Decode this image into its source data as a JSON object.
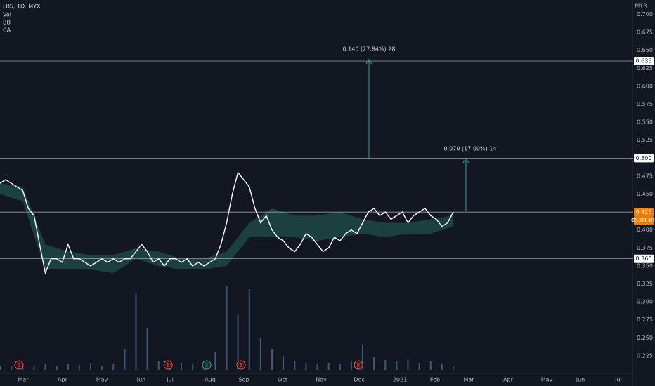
{
  "header": {
    "symbol": "LBS, 1D, MYX",
    "indicators": [
      "Vol",
      "BB",
      "CA"
    ]
  },
  "chart_data": {
    "type": "line",
    "currency": "MYR",
    "months": [
      "Mar",
      "Apr",
      "May",
      "Jun",
      "Jul",
      "Aug",
      "Sep",
      "Oct",
      "Nov",
      "Dec",
      "2021",
      "Feb",
      "Mar",
      "Apr",
      "May",
      "Jun",
      "Jul"
    ],
    "ylim": [
      0.2025,
      0.72
    ],
    "yticks": [
      {
        "value": 0.7,
        "label": "0.700"
      },
      {
        "value": 0.675,
        "label": "0.675"
      },
      {
        "value": 0.65,
        "label": "0.650"
      },
      {
        "value": 0.625,
        "label": "0.625"
      },
      {
        "value": 0.6,
        "label": "0.600"
      },
      {
        "value": 0.575,
        "label": "0.575"
      },
      {
        "value": 0.55,
        "label": "0.550"
      },
      {
        "value": 0.525,
        "label": "0.525"
      },
      {
        "value": 0.475,
        "label": "0.475"
      },
      {
        "value": 0.45,
        "label": "0.450"
      },
      {
        "value": 0.4,
        "label": "0.400"
      },
      {
        "value": 0.375,
        "label": "0.375"
      },
      {
        "value": 0.35,
        "label": "0.350"
      },
      {
        "value": 0.325,
        "label": "0.325"
      },
      {
        "value": 0.3,
        "label": "0.300"
      },
      {
        "value": 0.275,
        "label": "0.275"
      },
      {
        "value": 0.25,
        "label": "0.250"
      },
      {
        "value": 0.225,
        "label": "0.225"
      }
    ],
    "series": [
      {
        "color": "#ffffff",
        "values": [
          0.465,
          0.47,
          0.465,
          0.46,
          0.455,
          0.43,
          0.42,
          0.38,
          0.34,
          0.36,
          0.36,
          0.355,
          0.38,
          0.36,
          0.36,
          0.355,
          0.35,
          0.355,
          0.36,
          0.355,
          0.36,
          0.355,
          0.36,
          0.36,
          0.37,
          0.38,
          0.37,
          0.355,
          0.36,
          0.35,
          0.36,
          0.36,
          0.355,
          0.36,
          0.35,
          0.355,
          0.35,
          0.355,
          0.36,
          0.38,
          0.41,
          0.45,
          0.48,
          0.47,
          0.46,
          0.43,
          0.41,
          0.42,
          0.4,
          0.39,
          0.385,
          0.375,
          0.37,
          0.38,
          0.395,
          0.39,
          0.38,
          0.37,
          0.375,
          0.39,
          0.385,
          0.395,
          0.4,
          0.395,
          0.41,
          0.425,
          0.43,
          0.42,
          0.425,
          0.415,
          0.42,
          0.425,
          0.41,
          0.42,
          0.425,
          0.43,
          0.42,
          0.415,
          0.405,
          0.41,
          0.425
        ]
      }
    ],
    "cloud": {
      "color": "#1f4a48",
      "upper": [
        0.465,
        0.46,
        0.38,
        0.37,
        0.365,
        0.365,
        0.375,
        0.37,
        0.36,
        0.36,
        0.37,
        0.41,
        0.43,
        0.42,
        0.42,
        0.425,
        0.415,
        0.41,
        0.41,
        0.415,
        0.42
      ],
      "lower": [
        0.45,
        0.44,
        0.345,
        0.345,
        0.345,
        0.34,
        0.36,
        0.35,
        0.345,
        0.345,
        0.35,
        0.39,
        0.39,
        0.39,
        0.385,
        0.39,
        0.395,
        0.39,
        0.395,
        0.395,
        0.405
      ]
    },
    "volume": {
      "color": "#3a5a7a",
      "values": [
        5,
        6,
        5,
        6,
        8,
        6,
        8,
        7,
        10,
        6,
        8,
        30,
        110,
        60,
        12,
        8,
        10,
        8,
        10,
        25,
        120,
        80,
        115,
        45,
        30,
        20,
        12,
        10,
        8,
        10,
        8,
        12,
        35,
        18,
        14,
        12,
        15,
        10,
        12,
        8,
        6
      ]
    },
    "levels": [
      {
        "value": 0.635,
        "label": "0.635"
      },
      {
        "value": 0.5,
        "label": "0.500"
      },
      {
        "value": 0.425,
        "label": "0.425"
      },
      {
        "value": 0.36,
        "label": "0.360"
      }
    ],
    "countdown": "05:01:05",
    "measures": [
      "0.140 (27.84%) 28",
      "0.070 (17.00%) 14"
    ],
    "events": [
      "E",
      "E",
      "S",
      "E",
      "E"
    ]
  }
}
